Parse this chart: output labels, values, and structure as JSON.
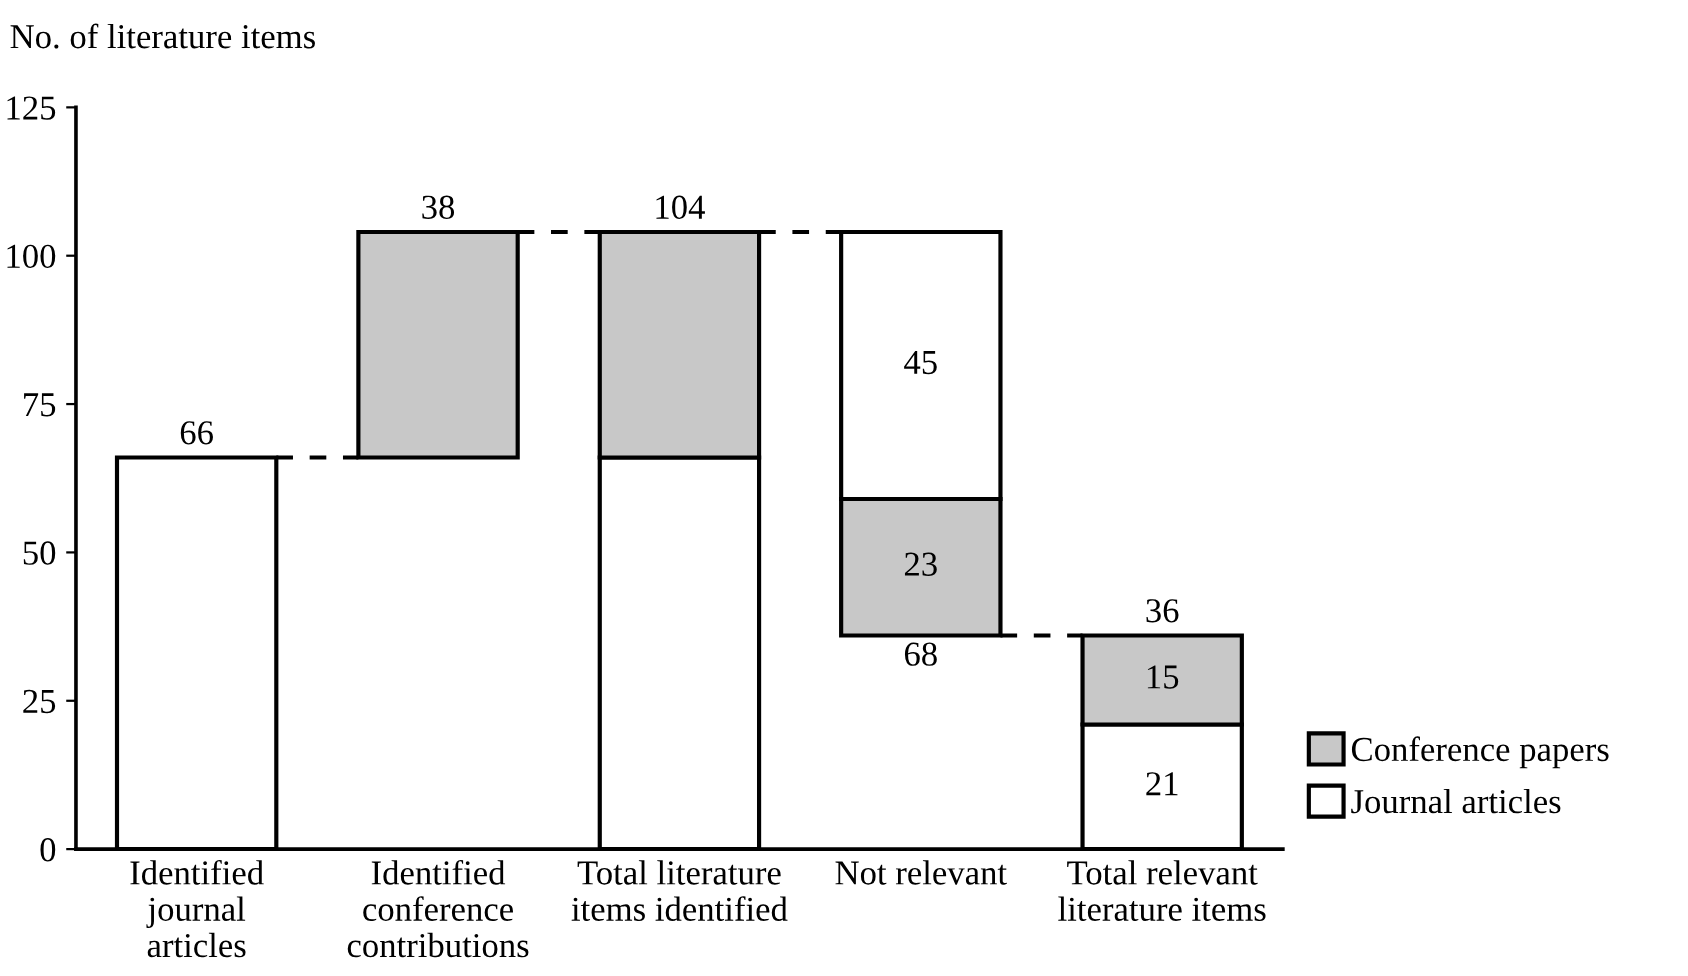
{
  "chart_data": {
    "type": "bar",
    "ylabel": "No. of literature items",
    "categories": [
      "Identified\njournal\narticles",
      "Identified\nconference\ncontributions",
      "Total literature\nitems identified",
      "Not relevant",
      "Total relevant\nliterature items"
    ],
    "series": [
      {
        "name": "Journal articles",
        "color": "#ffffff",
        "values": [
          66,
          null,
          66,
          45,
          21
        ],
        "base": [
          0,
          null,
          0,
          59,
          0
        ],
        "value_labels": [
          "66",
          null,
          null,
          "45",
          "21"
        ]
      },
      {
        "name": "Conference papers",
        "color": "#c8c8c8",
        "values": [
          null,
          38,
          38,
          23,
          15
        ],
        "base": [
          null,
          66,
          66,
          36,
          21
        ],
        "value_labels": [
          null,
          "38",
          null,
          "23",
          "15"
        ]
      }
    ],
    "totals": [
      null,
      null,
      "104",
      "68",
      "36"
    ],
    "ylim": [
      0,
      125
    ],
    "yticks": [
      0,
      25,
      50,
      75,
      100,
      125
    ],
    "grid": false,
    "legend": "bottom right"
  }
}
